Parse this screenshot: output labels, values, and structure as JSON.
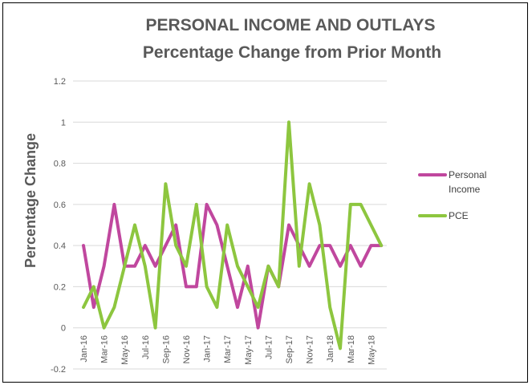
{
  "chart_data": {
    "type": "line",
    "title": "PERSONAL INCOME AND OUTLAYS",
    "subtitle": "Percentage Change from Prior Month",
    "xlabel": "",
    "ylabel": "Percentage Change",
    "ylim": [
      -0.2,
      1.2
    ],
    "yticks": [
      "-0.2",
      "0",
      "0.2",
      "0.4",
      "0.6",
      "0.8",
      "1",
      "1.2"
    ],
    "ytick_values": [
      -0.2,
      0,
      0.2,
      0.4,
      0.6,
      0.8,
      1,
      1.2
    ],
    "grid": true,
    "legend_position": "right",
    "categories": [
      "Jan-16",
      "Feb-16",
      "Mar-16",
      "Apr-16",
      "May-16",
      "Jun-16",
      "Jul-16",
      "Aug-16",
      "Sep-16",
      "Oct-16",
      "Nov-16",
      "Dec-16",
      "Jan-17",
      "Feb-17",
      "Mar-17",
      "Apr-17",
      "May-17",
      "Jun-17",
      "Jul-17",
      "Aug-17",
      "Sep-17",
      "Oct-17",
      "Nov-17",
      "Dec-17",
      "Jan-18",
      "Feb-18",
      "Mar-18",
      "Apr-18",
      "May-18",
      "Jun-18"
    ],
    "x_tick_labels": [
      "Jan-16",
      "Mar-16",
      "May-16",
      "Jul-16",
      "Sep-16",
      "Nov-16",
      "Jan-17",
      "Mar-17",
      "May-17",
      "Jul-17",
      "Sep-17",
      "Nov-17",
      "Jan-18",
      "Mar-18",
      "May-18"
    ],
    "series": [
      {
        "name": "Personal Income",
        "color": "#C0479E",
        "values": [
          0.4,
          0.1,
          0.3,
          0.6,
          0.3,
          0.3,
          0.4,
          0.3,
          0.4,
          0.5,
          0.2,
          0.2,
          0.6,
          0.5,
          0.3,
          0.1,
          0.3,
          0.0,
          0.3,
          0.2,
          0.5,
          0.4,
          0.3,
          0.4,
          0.4,
          0.3,
          0.4,
          0.3,
          0.4,
          0.4
        ]
      },
      {
        "name": "PCE",
        "color": "#8DC63F",
        "values": [
          0.1,
          0.2,
          0.0,
          0.1,
          0.3,
          0.5,
          0.3,
          0.0,
          0.7,
          0.4,
          0.3,
          0.6,
          0.2,
          0.1,
          0.5,
          0.3,
          0.2,
          0.1,
          0.3,
          0.2,
          1.0,
          0.3,
          0.7,
          0.5,
          0.1,
          -0.1,
          0.6,
          0.6,
          0.5,
          0.4
        ]
      }
    ]
  }
}
